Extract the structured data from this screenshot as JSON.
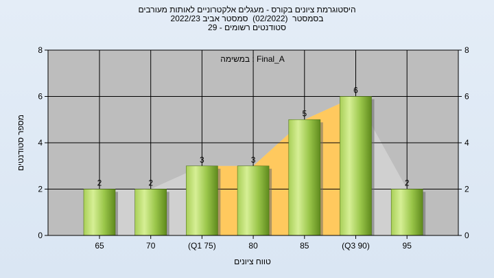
{
  "chart_data": {
    "type": "bar",
    "title_lines": [
      "היסטוגרמת ציונים בקורס - מעגלים אלקטרוניים לאותות מעורבים",
      "בסמסטר  (02/2022)  סמסטר אביב 2022/23",
      "סטודנטים רשומים - 29"
    ],
    "legend_text": "במשימה : Final_A",
    "legend_position": "top-center",
    "xlabel": "טווח ציונים",
    "ylabel": "מספר סטודנטים",
    "categories": [
      "65",
      "70",
      "(Q1 75)",
      "80",
      "85",
      "(Q3 90)",
      "95"
    ],
    "values": [
      2,
      2,
      3,
      3,
      5,
      6,
      2
    ],
    "ylim": [
      0,
      8
    ],
    "yticks": [
      "0",
      "2",
      "4",
      "6",
      "8"
    ],
    "grid": true,
    "secondary_y_axis": true,
    "iqr_band": {
      "from": "(Q1 75)",
      "to": "(Q3 90)"
    },
    "colors": {
      "plot_background": "#bdbdbd",
      "iqr_fill": "#ffc95e",
      "bar_light": "#d2ec8e",
      "bar_dark": "#5f8a1d"
    }
  }
}
